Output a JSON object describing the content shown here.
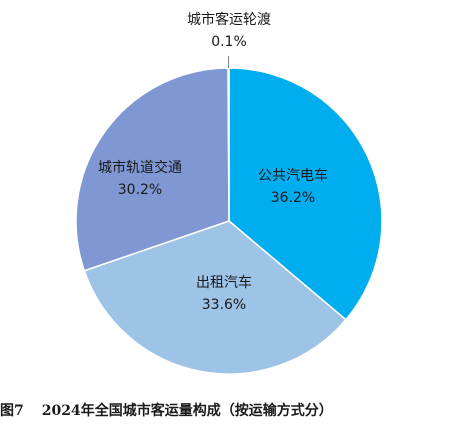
{
  "chart_data": {
    "type": "pie",
    "slices": [
      {
        "label": "公共汽电车",
        "value": 36.2,
        "value_label": "36.2%",
        "color": "#00adef"
      },
      {
        "label": "出租汽车",
        "value": 33.6,
        "value_label": "33.6%",
        "color": "#9dc3e6"
      },
      {
        "label": "城市轨道交通",
        "value": 30.2,
        "value_label": "30.2%",
        "color": "#7f98d4"
      },
      {
        "label": "城市客运轮渡",
        "value": 0.1,
        "value_label": "0.1%",
        "color": "#0a4f9e"
      }
    ],
    "start_angle_deg": 0,
    "direction": "clockwise",
    "legend": "none"
  },
  "caption": {
    "figure_number": "图7",
    "text": "2024年全国城市客运量构成（按运输方式分）"
  }
}
